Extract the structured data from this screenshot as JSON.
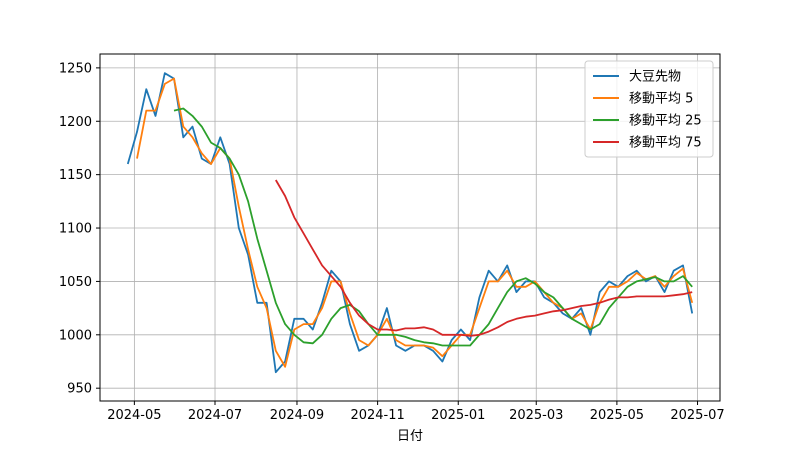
{
  "chart_data": {
    "type": "line",
    "xlabel": "日付",
    "x": [
      "2024-04-26",
      "2024-05-03",
      "2024-05-10",
      "2024-05-17",
      "2024-05-24",
      "2024-05-31",
      "2024-06-07",
      "2024-06-14",
      "2024-06-21",
      "2024-06-28",
      "2024-07-05",
      "2024-07-12",
      "2024-07-19",
      "2024-07-26",
      "2024-08-02",
      "2024-08-09",
      "2024-08-16",
      "2024-08-23",
      "2024-08-30",
      "2024-09-06",
      "2024-09-13",
      "2024-09-20",
      "2024-09-27",
      "2024-10-04",
      "2024-10-11",
      "2024-10-18",
      "2024-10-25",
      "2024-11-01",
      "2024-11-08",
      "2024-11-15",
      "2024-11-22",
      "2024-11-29",
      "2024-12-06",
      "2024-12-13",
      "2024-12-20",
      "2024-12-27",
      "2025-01-03",
      "2025-01-10",
      "2025-01-17",
      "2025-01-24",
      "2025-01-31",
      "2025-02-07",
      "2025-02-14",
      "2025-02-21",
      "2025-02-28",
      "2025-03-07",
      "2025-03-14",
      "2025-03-21",
      "2025-03-28",
      "2025-04-04",
      "2025-04-11",
      "2025-04-18",
      "2025-04-25",
      "2025-05-02",
      "2025-05-09",
      "2025-05-16",
      "2025-05-23",
      "2025-05-30",
      "2025-06-06",
      "2025-06-13",
      "2025-06-20",
      "2025-06-27"
    ],
    "series": [
      {
        "name": "大豆先物",
        "color": "#1f77b4",
        "values": [
          1160,
          1190,
          1230,
          1205,
          1245,
          1240,
          1185,
          1195,
          1165,
          1160,
          1185,
          1160,
          1100,
          1075,
          1030,
          1030,
          965,
          975,
          1015,
          1015,
          1005,
          1030,
          1060,
          1050,
          1010,
          985,
          990,
          1000,
          1025,
          990,
          985,
          990,
          990,
          985,
          975,
          995,
          1005,
          995,
          1035,
          1060,
          1050,
          1065,
          1040,
          1050,
          1050,
          1035,
          1030,
          1020,
          1015,
          1025,
          1000,
          1040,
          1050,
          1045,
          1055,
          1060,
          1050,
          1055,
          1040,
          1060,
          1065,
          1020
        ]
      },
      {
        "name": "移動平均 5",
        "color": "#ff7f0e",
        "values": [
          null,
          1165,
          1210,
          1210,
          1235,
          1240,
          1195,
          1185,
          1170,
          1160,
          1175,
          1165,
          1120,
          1080,
          1045,
          1025,
          985,
          970,
          1005,
          1010,
          1010,
          1025,
          1050,
          1050,
          1020,
          995,
          990,
          1000,
          1015,
          995,
          990,
          990,
          990,
          988,
          980,
          990,
          1000,
          1000,
          1025,
          1050,
          1050,
          1060,
          1045,
          1045,
          1050,
          1040,
          1030,
          1025,
          1015,
          1020,
          1005,
          1030,
          1045,
          1045,
          1050,
          1058,
          1052,
          1055,
          1045,
          1055,
          1062,
          1030
        ]
      },
      {
        "name": "移動平均 25",
        "color": "#2ca02c",
        "values": [
          null,
          null,
          null,
          null,
          null,
          1210,
          1212,
          1205,
          1195,
          1180,
          1175,
          1165,
          1150,
          1125,
          1090,
          1060,
          1030,
          1010,
          1000,
          993,
          992,
          1000,
          1015,
          1025,
          1028,
          1022,
          1010,
          1000,
          1000,
          1000,
          998,
          995,
          993,
          992,
          990,
          990,
          990,
          990,
          1000,
          1010,
          1025,
          1040,
          1050,
          1053,
          1048,
          1040,
          1035,
          1025,
          1015,
          1010,
          1005,
          1010,
          1025,
          1035,
          1045,
          1050,
          1052,
          1054,
          1050,
          1050,
          1055,
          1045
        ]
      },
      {
        "name": "移動平均 75",
        "color": "#d62728",
        "values": [
          null,
          null,
          null,
          null,
          null,
          null,
          null,
          null,
          null,
          null,
          null,
          null,
          null,
          null,
          null,
          null,
          1145,
          1130,
          1110,
          1095,
          1080,
          1065,
          1055,
          1045,
          1030,
          1018,
          1010,
          1005,
          1005,
          1004,
          1006,
          1006,
          1007,
          1005,
          1000,
          1000,
          1000,
          999,
          1000,
          1003,
          1007,
          1012,
          1015,
          1017,
          1018,
          1020,
          1022,
          1023,
          1025,
          1027,
          1028,
          1030,
          1033,
          1035,
          1035,
          1036,
          1036,
          1036,
          1036,
          1037,
          1038,
          1040
        ]
      }
    ],
    "xlim": [
      "2024-04-05",
      "2025-07-18"
    ],
    "xticks": [
      {
        "value": "2024-05-01",
        "label": "2024-05"
      },
      {
        "value": "2024-07-01",
        "label": "2024-07"
      },
      {
        "value": "2024-09-01",
        "label": "2024-09"
      },
      {
        "value": "2024-11-01",
        "label": "2024-11"
      },
      {
        "value": "2025-01-01",
        "label": "2025-01"
      },
      {
        "value": "2025-03-01",
        "label": "2025-03"
      },
      {
        "value": "2025-05-01",
        "label": "2025-05"
      },
      {
        "value": "2025-07-01",
        "label": "2025-07"
      }
    ],
    "ylim": [
      938,
      1263
    ],
    "yticks": [
      950,
      1000,
      1050,
      1100,
      1150,
      1200,
      1250
    ],
    "grid": true,
    "legend": "upper right"
  }
}
